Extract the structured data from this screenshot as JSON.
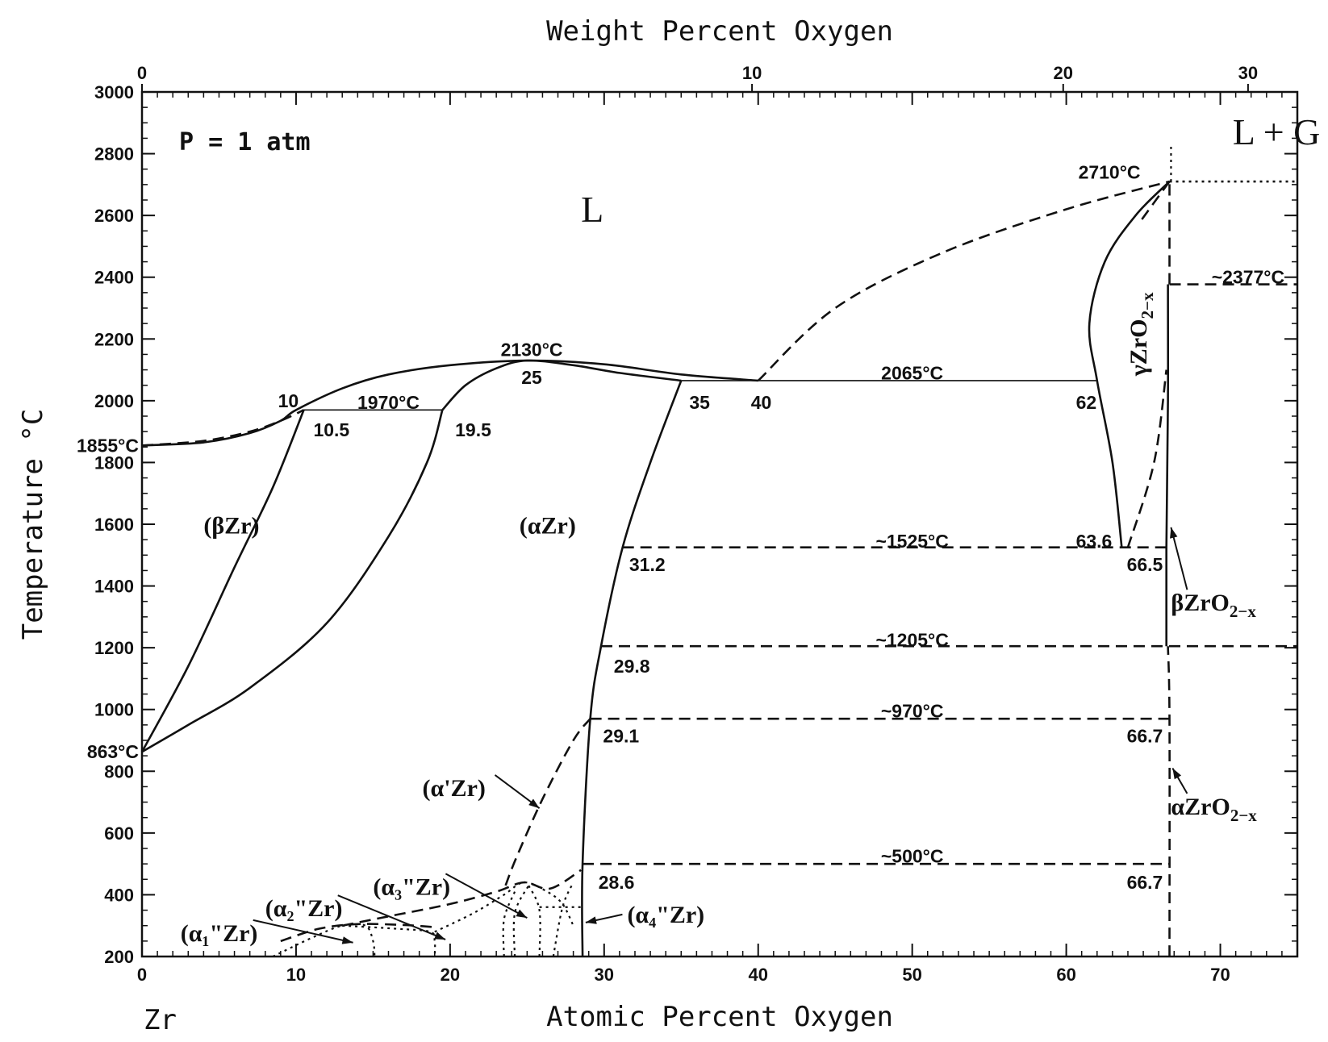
{
  "chart_data": {
    "type": "phase-diagram",
    "title": "",
    "pressure_label": "P = 1 atm",
    "xlabel": "Atomic Percent Oxygen",
    "x2label": "Weight Percent Oxygen",
    "ylabel": "Temperature °C",
    "corner_label": "Zr",
    "xlim": [
      0,
      75
    ],
    "ylim": [
      200,
      3000
    ],
    "x_ticks": [
      0,
      10,
      20,
      30,
      40,
      50,
      60,
      70
    ],
    "x_minor_step": 1,
    "y_ticks": [
      200,
      400,
      600,
      800,
      1000,
      1200,
      1400,
      1600,
      1800,
      2000,
      2200,
      2400,
      2600,
      2800,
      3000
    ],
    "y_minor_step": 50,
    "top_ticks": [
      {
        "label": "0",
        "at": 0
      },
      {
        "label": "10",
        "at": 39.6
      },
      {
        "label": "20",
        "at": 59.8
      },
      {
        "label": "30",
        "at": 71.8
      }
    ],
    "regions": [
      {
        "label": "L",
        "x": 28.5,
        "y": 2580,
        "style": "big"
      },
      {
        "label": "L + G",
        "x": 70.8,
        "y": 2830,
        "style": "big-mono"
      },
      {
        "label": "(βZr)",
        "x": 4,
        "y": 1570,
        "style": "region"
      },
      {
        "label": "(αZr)",
        "x": 24.5,
        "y": 1570,
        "style": "region"
      }
    ],
    "rotated_labels": [
      {
        "name": "γZrO",
        "sub": "2−x",
        "x": 65.2,
        "y": 2080
      }
    ],
    "phase_labels": [
      {
        "name": "βZrO",
        "sub": "2−x",
        "x": 66.8,
        "y": 1320,
        "arrow_to": [
          66.8,
          1590
        ]
      },
      {
        "name": "αZrO",
        "sub": "2−x",
        "x": 66.8,
        "y": 660,
        "arrow_to": [
          66.9,
          810
        ]
      },
      {
        "name": "(α'Zr)",
        "x": 18.2,
        "y": 720,
        "arrow_to": [
          25.8,
          680
        ]
      },
      {
        "name": "(α₃\"Zr)",
        "x": 15,
        "y": 400,
        "arrow_to": [
          25,
          325
        ]
      },
      {
        "name": "(α₂\"Zr)",
        "x": 8,
        "y": 330,
        "arrow_to": [
          19.7,
          255
        ]
      },
      {
        "name": "(α₁\"Zr)",
        "x": 2.5,
        "y": 250,
        "arrow_to": [
          13.7,
          245
        ]
      },
      {
        "name": "(α₄\"Zr)",
        "x": 31.5,
        "y": 310,
        "arrow_to": [
          28.8,
          310
        ],
        "anchor_left": true
      }
    ],
    "annotations": [
      {
        "text": "2130°C",
        "x": 25.3,
        "y": 2165
      },
      {
        "text": "25",
        "x": 25.3,
        "y": 2075
      },
      {
        "text": "2065°C",
        "x": 50,
        "y": 2090
      },
      {
        "text": "1970°C",
        "x": 16,
        "y": 1995
      },
      {
        "text": "10",
        "x": 9.5,
        "y": 2000
      },
      {
        "text": "10.5",
        "x": 12.3,
        "y": 1905
      },
      {
        "text": "19.5",
        "x": 21.5,
        "y": 1905
      },
      {
        "text": "35",
        "x": 36.2,
        "y": 1995
      },
      {
        "text": "40",
        "x": 40.2,
        "y": 1995
      },
      {
        "text": "62",
        "x": 61.3,
        "y": 1995
      },
      {
        "text": "1855°C",
        "x": -2.3,
        "y": 1855
      },
      {
        "text": "863°C",
        "x": -2.3,
        "y": 863
      },
      {
        "text": "2710°C",
        "x": 62.8,
        "y": 2740
      },
      {
        "text": "~2377°C",
        "x": 71.8,
        "y": 2400
      },
      {
        "text": "~1525°C",
        "x": 50,
        "y": 1545
      },
      {
        "text": "63.6",
        "x": 61.8,
        "y": 1545
      },
      {
        "text": "66.5",
        "x": 65.1,
        "y": 1470
      },
      {
        "text": "31.2",
        "x": 32.8,
        "y": 1470
      },
      {
        "text": "~1205°C",
        "x": 50,
        "y": 1225
      },
      {
        "text": "29.8",
        "x": 31.8,
        "y": 1140
      },
      {
        "text": "~970°C",
        "x": 50,
        "y": 995
      },
      {
        "text": "29.1",
        "x": 31.1,
        "y": 915
      },
      {
        "text": "66.7",
        "x": 65.1,
        "y": 915
      },
      {
        "text": "~500°C",
        "x": 50,
        "y": 525
      },
      {
        "text": "28.6",
        "x": 30.8,
        "y": 440
      },
      {
        "text": "66.7",
        "x": 65.1,
        "y": 440
      }
    ],
    "curves": [
      {
        "name": "liquidus-zr-rich",
        "style": "solid",
        "points": [
          [
            0,
            1855
          ],
          [
            4,
            1865
          ],
          [
            7,
            1895
          ],
          [
            9,
            1935
          ],
          [
            10,
            1970
          ],
          [
            13,
            2040
          ],
          [
            16,
            2085
          ],
          [
            20,
            2115
          ],
          [
            25,
            2130
          ],
          [
            30,
            2118
          ],
          [
            35,
            2085
          ],
          [
            40,
            2065
          ]
        ]
      },
      {
        "name": "solidus-zr-rich",
        "style": "dashed",
        "points": [
          [
            0,
            1855
          ],
          [
            4,
            1870
          ],
          [
            7,
            1900
          ],
          [
            9,
            1935
          ],
          [
            10.5,
            1970
          ]
        ]
      },
      {
        "name": "alpha-solidus",
        "style": "solid",
        "points": [
          [
            19.5,
            1970
          ],
          [
            21,
            2050
          ],
          [
            23,
            2105
          ],
          [
            25,
            2130
          ],
          [
            28,
            2115
          ],
          [
            31,
            2090
          ],
          [
            35,
            2065
          ]
        ]
      },
      {
        "name": "beta-transus-lower",
        "style": "solid",
        "points": [
          [
            0,
            863
          ],
          [
            3,
            1140
          ],
          [
            6,
            1460
          ],
          [
            8.5,
            1720
          ],
          [
            10.5,
            1970
          ]
        ]
      },
      {
        "name": "beta-transus-upper",
        "style": "solid",
        "points": [
          [
            0,
            863
          ],
          [
            3,
            950
          ],
          [
            7,
            1070
          ],
          [
            12,
            1280
          ],
          [
            16,
            1560
          ],
          [
            18.5,
            1800
          ],
          [
            19.5,
            1970
          ]
        ]
      },
      {
        "name": "alpha-solvus",
        "style": "solid",
        "points": [
          [
            28.6,
            200
          ],
          [
            28.6,
            500
          ],
          [
            29.1,
            970
          ],
          [
            29.8,
            1205
          ],
          [
            31.2,
            1525
          ],
          [
            33,
            1800
          ],
          [
            35,
            2065
          ]
        ]
      },
      {
        "name": "liquidus-zro2",
        "style": "dashed",
        "points": [
          [
            40,
            2065
          ],
          [
            45,
            2300
          ],
          [
            52,
            2480
          ],
          [
            60,
            2620
          ],
          [
            66.7,
            2710
          ]
        ]
      },
      {
        "name": "gamma-zro2-left",
        "style": "solid",
        "points": [
          [
            66.7,
            2710
          ],
          [
            64.5,
            2600
          ],
          [
            62.5,
            2450
          ],
          [
            61.5,
            2250
          ],
          [
            62,
            2065
          ],
          [
            63,
            1800
          ],
          [
            63.6,
            1525
          ]
        ]
      },
      {
        "name": "gamma-zro2-right",
        "style": "dashed",
        "points": [
          [
            66.7,
            2710
          ],
          [
            64.8,
            2580
          ]
        ]
      },
      {
        "name": "gamma-zro2-inner",
        "style": "dashed",
        "points": [
          [
            64,
            1525
          ],
          [
            65.7,
            1800
          ],
          [
            66.5,
            2100
          ]
        ]
      },
      {
        "name": "zro2-stoich-solid",
        "style": "solid",
        "points": [
          [
            66.5,
            1205
          ],
          [
            66.5,
            1525
          ],
          [
            66.6,
            2000
          ],
          [
            66.6,
            2377
          ]
        ]
      },
      {
        "name": "zro2-stoich-dashed",
        "style": "dashed",
        "points": [
          [
            66.7,
            200
          ],
          [
            66.7,
            970
          ],
          [
            66.6,
            1205
          ]
        ]
      },
      {
        "name": "zro2-upper-dashed",
        "style": "dashed",
        "points": [
          [
            66.7,
            2377
          ],
          [
            66.7,
            2710
          ]
        ]
      },
      {
        "name": "zro2-dotted",
        "style": "dotted",
        "points": [
          [
            66.8,
            2710
          ],
          [
            66.8,
            2830
          ]
        ]
      },
      {
        "name": "alpha-prime",
        "style": "dashed",
        "points": [
          [
            23.6,
            430
          ],
          [
            24.3,
            520
          ],
          [
            26,
            710
          ],
          [
            28,
            900
          ],
          [
            29.1,
            970
          ]
        ]
      },
      {
        "name": "alpha3-dome",
        "style": "dashed",
        "points": [
          [
            13,
            300
          ],
          [
            16,
            330
          ],
          [
            20,
            370
          ],
          [
            23,
            410
          ],
          [
            24.8,
            440
          ],
          [
            26.5,
            420
          ],
          [
            28.5,
            480
          ]
        ]
      },
      {
        "name": "alpha2-dome",
        "style": "dashed",
        "points": [
          [
            9,
            250
          ],
          [
            11.5,
            290
          ],
          [
            14,
            305
          ],
          [
            17,
            302
          ],
          [
            19,
            295
          ]
        ]
      },
      {
        "name": "alpha1-dotted",
        "style": "dotted",
        "points": [
          [
            8.5,
            200
          ],
          [
            11,
            260
          ],
          [
            13,
            300
          ],
          [
            14.5,
            300
          ],
          [
            15,
            250
          ],
          [
            15.1,
            200
          ]
        ]
      },
      {
        "name": "alpha2-dotted",
        "style": "dotted",
        "points": [
          [
            13,
            300
          ],
          [
            16.5,
            290
          ],
          [
            18.7,
            280
          ],
          [
            19,
            250
          ],
          [
            19,
            200
          ]
        ]
      },
      {
        "name": "alpha3-dotted",
        "style": "dotted",
        "points": [
          [
            19,
            280
          ],
          [
            21.5,
            340
          ],
          [
            23.5,
            400
          ],
          [
            24.8,
            440
          ],
          [
            26.3,
            410
          ],
          [
            27.3,
            370
          ],
          [
            28,
            300
          ]
        ]
      },
      {
        "name": "alpha-dotted-a",
        "style": "dotted",
        "points": [
          [
            23.5,
            200
          ],
          [
            23.5,
            320
          ],
          [
            24.2,
            410
          ]
        ]
      },
      {
        "name": "alpha-dotted-b",
        "style": "dotted",
        "points": [
          [
            24.2,
            200
          ],
          [
            24.2,
            340
          ],
          [
            25.1,
            430
          ]
        ]
      },
      {
        "name": "alpha-dotted-c",
        "style": "dotted",
        "points": [
          [
            25.8,
            200
          ],
          [
            25.8,
            350
          ],
          [
            25.1,
            430
          ]
        ]
      },
      {
        "name": "alpha-dotted-d",
        "style": "dotted",
        "points": [
          [
            26.7,
            200
          ],
          [
            27.3,
            360
          ],
          [
            28,
            440
          ]
        ]
      },
      {
        "name": "alpha-dotted-e",
        "style": "dotted",
        "points": [
          [
            25.8,
            360
          ],
          [
            28.5,
            360
          ]
        ]
      }
    ],
    "isotherms": [
      {
        "style": "solid",
        "from": 10.5,
        "to": 19.5,
        "y": 1970
      },
      {
        "style": "solid",
        "from": 35,
        "to": 62,
        "y": 2065
      },
      {
        "style": "dotted",
        "from": 66.7,
        "to": 75,
        "y": 2710
      },
      {
        "style": "dashed",
        "from": 66.7,
        "to": 75,
        "y": 2377
      },
      {
        "style": "dashed",
        "from": 31.2,
        "to": 66.5,
        "y": 1525
      },
      {
        "style": "dashed",
        "from": 29.8,
        "to": 75,
        "y": 1205
      },
      {
        "style": "dashed",
        "from": 29.1,
        "to": 66.7,
        "y": 970
      },
      {
        "style": "dashed",
        "from": 28.6,
        "to": 66.7,
        "y": 500
      }
    ]
  }
}
